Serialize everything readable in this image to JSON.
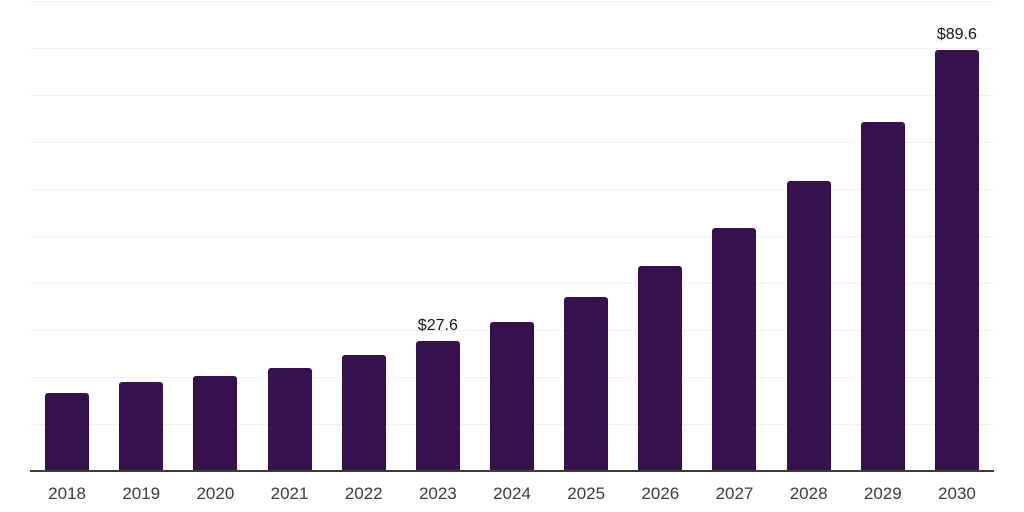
{
  "chart_data": {
    "type": "bar",
    "categories": [
      "2018",
      "2019",
      "2020",
      "2021",
      "2022",
      "2023",
      "2024",
      "2025",
      "2026",
      "2027",
      "2028",
      "2029",
      "2030"
    ],
    "values": [
      16.7,
      18.9,
      20.3,
      22.0,
      24.6,
      27.6,
      31.8,
      37.0,
      43.6,
      51.8,
      61.8,
      74.3,
      89.6
    ],
    "data_labels": [
      "",
      "",
      "",
      "",
      "",
      "$27.6",
      "",
      "",
      "",
      "",
      "",
      "",
      "$89.6"
    ],
    "title": "",
    "xlabel": "",
    "ylabel": "",
    "ylim": [
      0,
      100
    ],
    "gridline_step": 10,
    "grid": "horizontal",
    "y_axis_labels_visible": false,
    "legend_position": "none",
    "colors": {
      "bar": "#36114E",
      "gridline": "#f2f2f2",
      "axis_line": "#3a3a3a",
      "x_label_text": "#3d3d3d",
      "value_label_text": "#141414",
      "background": "#ffffff"
    }
  }
}
